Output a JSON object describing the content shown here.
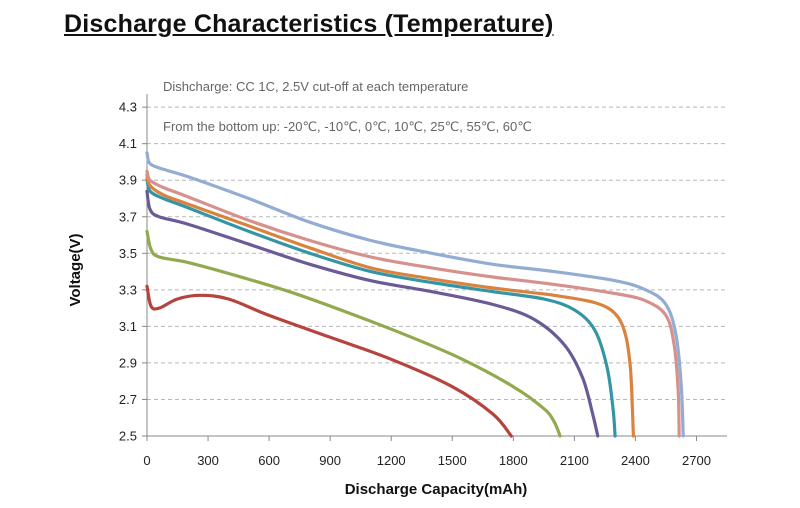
{
  "title": "Discharge Characteristics (Temperature)",
  "chart_data": {
    "type": "line",
    "title": "Discharge Characteristics (Temperature)",
    "xlabel": "Discharge Capacity(mAh)",
    "ylabel": "Voltage(V)",
    "xlim": [
      0,
      2850
    ],
    "ylim": [
      2.5,
      4.35
    ],
    "xticks": [
      "0",
      "300",
      "600",
      "900",
      "1200",
      "1500",
      "1800",
      "2100",
      "2400",
      "2700"
    ],
    "yticks": [
      "2.5",
      "2.7",
      "2.9",
      "3.1",
      "3.3",
      "3.5",
      "3.7",
      "3.9",
      "4.1",
      "4.3"
    ],
    "xtick_values": [
      0,
      300,
      600,
      900,
      1200,
      1500,
      1800,
      2100,
      2400,
      2700
    ],
    "ytick_values": [
      2.5,
      2.7,
      2.9,
      3.1,
      3.3,
      3.5,
      3.7,
      3.9,
      4.1,
      4.3
    ],
    "grid": "horizontal dashed",
    "annotations": [
      "Dishcharge:  CC 1C, 2.5V cut-off at each temperature",
      "From the bottom up: -20℃, -10℃, 0℃, 10℃, 25℃, 55℃, 60℃"
    ],
    "series": [
      {
        "color": "#b5433e",
        "x": [
          0,
          20,
          60,
          150,
          260,
          400,
          600,
          900,
          1200,
          1500,
          1700,
          1790
        ],
        "y": [
          3.32,
          3.21,
          3.2,
          3.25,
          3.27,
          3.25,
          3.16,
          3.04,
          2.92,
          2.77,
          2.62,
          2.5
        ]
      },
      {
        "color": "#92aa4f",
        "x": [
          0,
          20,
          60,
          200,
          400,
          700,
          1000,
          1300,
          1550,
          1800,
          1950,
          2000,
          2030
        ],
        "y": [
          3.62,
          3.52,
          3.48,
          3.45,
          3.39,
          3.29,
          3.17,
          3.04,
          2.92,
          2.77,
          2.65,
          2.58,
          2.5
        ]
      },
      {
        "color": "#6a5a96",
        "x": [
          0,
          15,
          60,
          200,
          500,
          800,
          1100,
          1400,
          1700,
          1900,
          2050,
          2140,
          2190,
          2215
        ],
        "y": [
          3.84,
          3.74,
          3.7,
          3.66,
          3.55,
          3.44,
          3.35,
          3.29,
          3.22,
          3.14,
          3.0,
          2.82,
          2.62,
          2.5
        ]
      },
      {
        "color": "#3495a5",
        "x": [
          0,
          15,
          80,
          200,
          500,
          800,
          1100,
          1400,
          1700,
          1950,
          2100,
          2200,
          2260,
          2290,
          2300
        ],
        "y": [
          3.91,
          3.84,
          3.8,
          3.75,
          3.62,
          3.5,
          3.4,
          3.34,
          3.29,
          3.25,
          3.19,
          3.08,
          2.88,
          2.65,
          2.5
        ]
      },
      {
        "color": "#d9833f",
        "x": [
          0,
          15,
          80,
          200,
          500,
          800,
          1100,
          1400,
          1700,
          2000,
          2200,
          2300,
          2350,
          2375,
          2385,
          2390
        ],
        "y": [
          3.93,
          3.87,
          3.82,
          3.77,
          3.65,
          3.53,
          3.42,
          3.36,
          3.31,
          3.27,
          3.23,
          3.17,
          3.06,
          2.88,
          2.65,
          2.5
        ]
      },
      {
        "color": "#d6918c",
        "x": [
          0,
          15,
          80,
          200,
          500,
          800,
          1100,
          1400,
          1700,
          2000,
          2300,
          2450,
          2550,
          2590,
          2610,
          2615
        ],
        "y": [
          3.95,
          3.9,
          3.86,
          3.81,
          3.68,
          3.57,
          3.48,
          3.42,
          3.37,
          3.33,
          3.28,
          3.24,
          3.16,
          3.0,
          2.75,
          2.5
        ]
      },
      {
        "color": "#93acd3",
        "x": [
          0,
          15,
          80,
          200,
          500,
          800,
          1100,
          1400,
          1700,
          2000,
          2300,
          2450,
          2550,
          2600,
          2625,
          2635
        ],
        "y": [
          4.05,
          3.99,
          3.96,
          3.92,
          3.8,
          3.67,
          3.57,
          3.5,
          3.44,
          3.4,
          3.35,
          3.3,
          3.22,
          3.05,
          2.78,
          2.5
        ]
      }
    ]
  }
}
